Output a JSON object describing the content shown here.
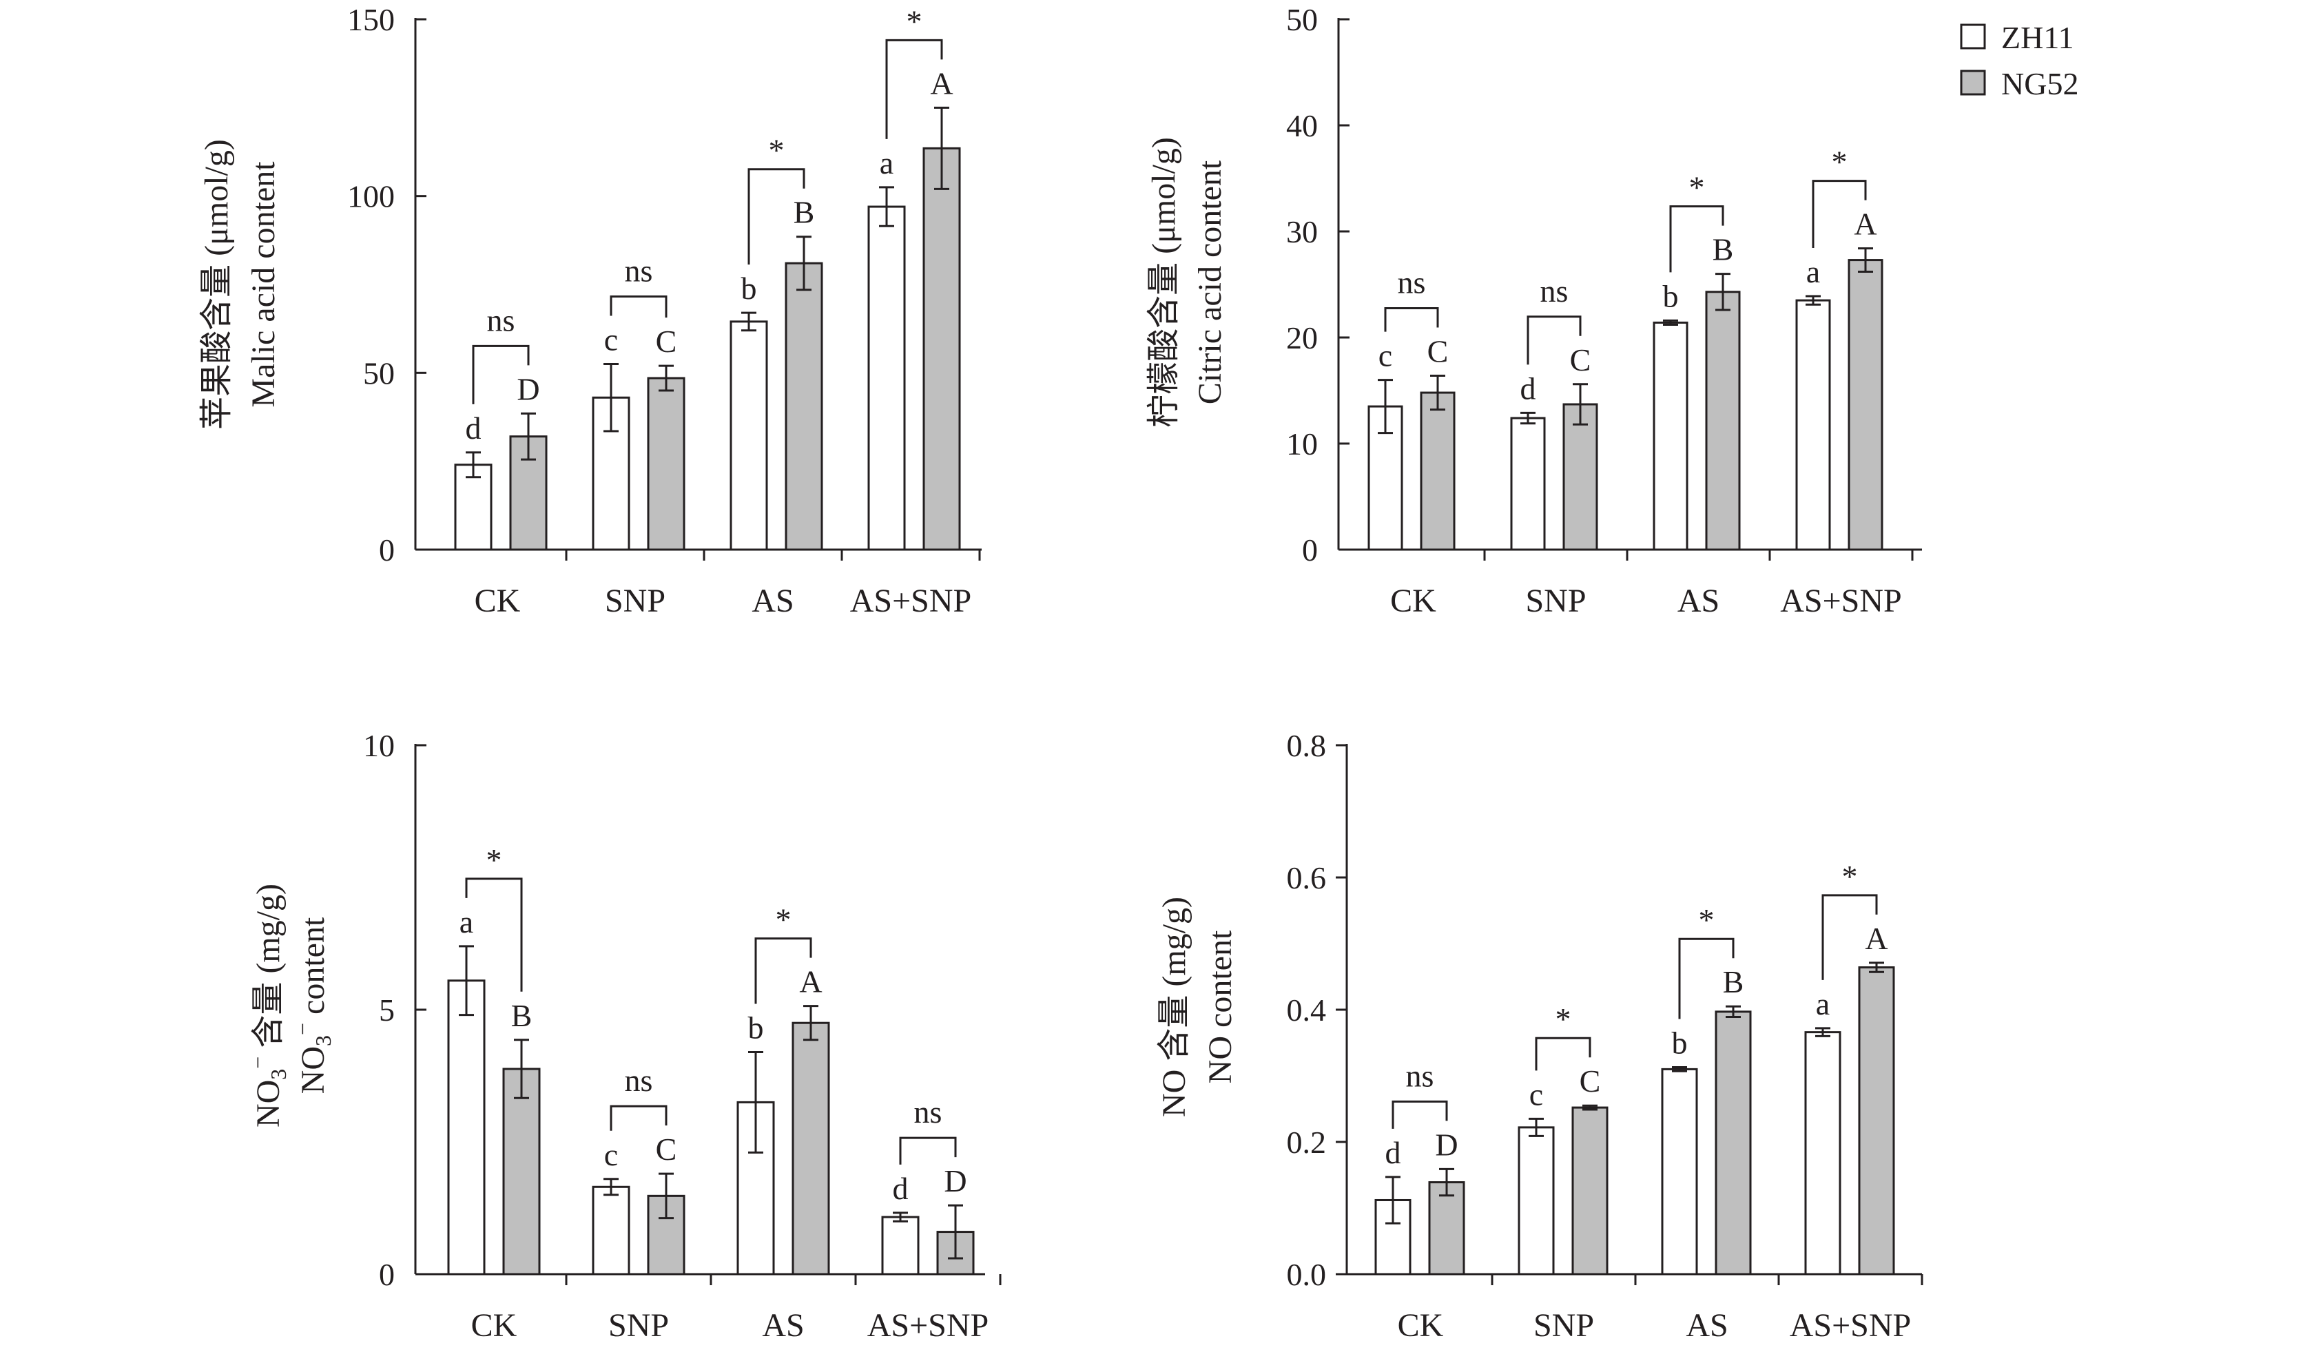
{
  "legend": {
    "entries": [
      {
        "name": "ZH11",
        "fill": "#ffffff"
      },
      {
        "name": "NG52",
        "fill": "#bfbfbf"
      }
    ],
    "placement": "top-right"
  },
  "colors": {
    "zh11": "#ffffff",
    "ng52": "#bfbfbf",
    "stroke": "#231f20"
  },
  "chart_data": [
    {
      "id": "malic",
      "type": "bar",
      "ylabel_cn": "苹果酸含量 (μmol/g)",
      "ylabel_en": "Malic acid content",
      "categories": [
        "CK",
        "SNP",
        "AS",
        "AS+SNP"
      ],
      "ylim": [
        0,
        150
      ],
      "yticks": [
        0,
        50,
        100,
        150
      ],
      "grid": false,
      "series": [
        {
          "name": "ZH11",
          "values": [
            24,
            43,
            64.5,
            97
          ],
          "errors": [
            3.5,
            9.5,
            2.5,
            5.5
          ],
          "letters": [
            "d",
            "c",
            "b",
            "a"
          ]
        },
        {
          "name": "NG52",
          "values": [
            32,
            48.5,
            81,
            113.5
          ],
          "errors": [
            6.5,
            3.5,
            7.5,
            11.5
          ],
          "letters": [
            "D",
            "C",
            "B",
            "A"
          ]
        }
      ],
      "comparisons": [
        "ns",
        "ns",
        "*",
        "*"
      ]
    },
    {
      "id": "citric",
      "type": "bar",
      "ylabel_cn": "柠檬酸含量 (μmol/g)",
      "ylabel_en": "Citric acid content",
      "categories": [
        "CK",
        "SNP",
        "AS",
        "AS+SNP"
      ],
      "ylim": [
        0,
        50
      ],
      "yticks": [
        0,
        10,
        20,
        30,
        40,
        50
      ],
      "grid": false,
      "series": [
        {
          "name": "ZH11",
          "values": [
            13.5,
            12.4,
            21.4,
            23.5
          ],
          "errors": [
            2.5,
            0.5,
            0.2,
            0.4
          ],
          "letters": [
            "c",
            "d",
            "b",
            "a"
          ]
        },
        {
          "name": "NG52",
          "values": [
            14.8,
            13.7,
            24.3,
            27.3
          ],
          "errors": [
            1.6,
            1.9,
            1.7,
            1.1
          ],
          "letters": [
            "C",
            "C",
            "B",
            "A"
          ]
        }
      ],
      "comparisons": [
        "ns",
        "ns",
        "*",
        "*"
      ]
    },
    {
      "id": "nitrate",
      "type": "bar",
      "ylabel_cn": "含量 (mg/g)",
      "ylabel_en": "content",
      "ylabel_chem": "NO",
      "ylabel_sub": "3",
      "ylabel_sup": "−",
      "categories": [
        "CK",
        "SNP",
        "AS",
        "AS+SNP"
      ],
      "ylim": [
        0,
        10
      ],
      "yticks": [
        0,
        5,
        10
      ],
      "grid": false,
      "series": [
        {
          "name": "ZH11",
          "values": [
            5.55,
            1.65,
            3.25,
            1.08
          ],
          "errors": [
            0.65,
            0.15,
            0.95,
            0.08
          ],
          "letters": [
            "a",
            "c",
            "b",
            "d"
          ]
        },
        {
          "name": "NG52",
          "values": [
            3.88,
            1.48,
            4.75,
            0.8
          ],
          "errors": [
            0.55,
            0.42,
            0.32,
            0.5
          ],
          "letters": [
            "B",
            "C",
            "A",
            "D"
          ]
        }
      ],
      "comparisons": [
        "*",
        "ns",
        "*",
        "ns"
      ]
    },
    {
      "id": "no",
      "type": "bar",
      "ylabel_cn": "NO 含量 (mg/g)",
      "ylabel_en": "NO content",
      "categories": [
        "CK",
        "SNP",
        "AS",
        "AS+SNP"
      ],
      "ylim": [
        0,
        0.8
      ],
      "yticks": [
        0,
        0.2,
        0.4,
        0.6,
        0.8
      ],
      "grid": false,
      "series": [
        {
          "name": "ZH11",
          "values": [
            0.112,
            0.222,
            0.31,
            0.366
          ],
          "errors": [
            0.035,
            0.013,
            0.003,
            0.006
          ],
          "letters": [
            "d",
            "c",
            "b",
            "a"
          ]
        },
        {
          "name": "NG52",
          "values": [
            0.139,
            0.252,
            0.397,
            0.464
          ],
          "errors": [
            0.02,
            0.003,
            0.008,
            0.007
          ],
          "letters": [
            "D",
            "C",
            "B",
            "A"
          ]
        }
      ],
      "comparisons": [
        "ns",
        "*",
        "*",
        "*"
      ]
    }
  ]
}
